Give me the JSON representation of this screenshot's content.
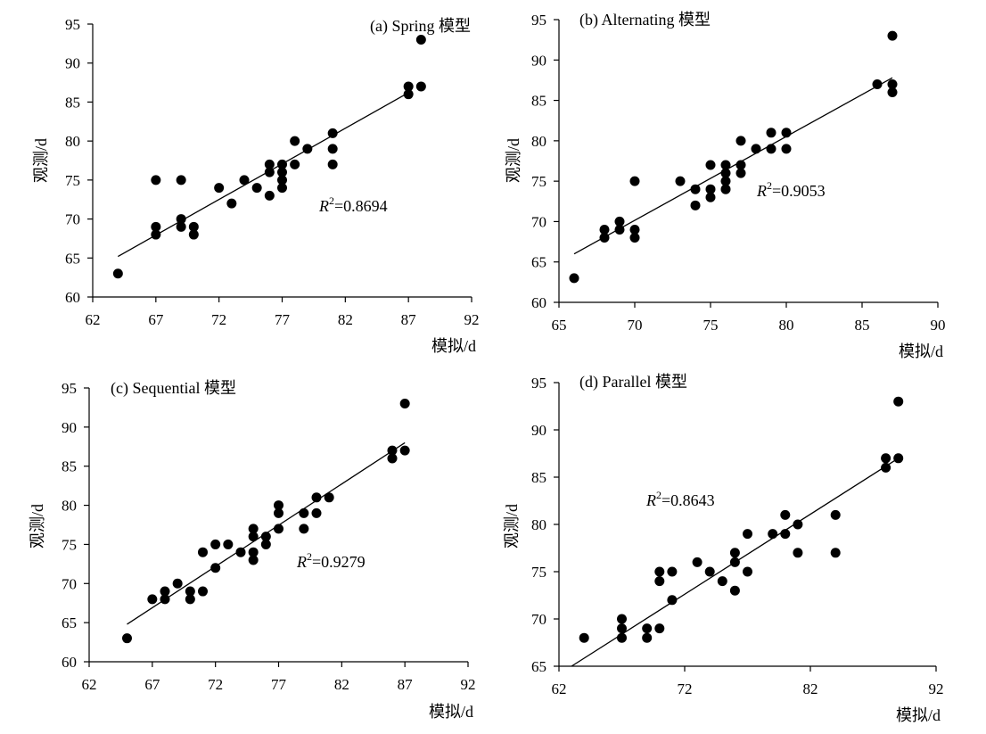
{
  "chart_data": [
    {
      "type": "scatter",
      "title": "(a) Spring 模型",
      "xlabel": "模拟/d",
      "ylabel": "观测/d",
      "xlim": [
        62,
        92
      ],
      "ylim": [
        60,
        95
      ],
      "xticks": [
        62,
        67,
        72,
        77,
        82,
        87,
        92
      ],
      "yticks": [
        60,
        65,
        70,
        75,
        80,
        85,
        90,
        95
      ],
      "r2_label": "=0.8694",
      "trendline": [
        [
          64,
          65.2
        ],
        [
          87,
          86.2
        ]
      ],
      "points": [
        [
          64,
          63
        ],
        [
          67,
          75
        ],
        [
          67,
          69
        ],
        [
          67,
          68
        ],
        [
          69,
          75
        ],
        [
          69,
          70
        ],
        [
          69,
          69
        ],
        [
          70,
          69
        ],
        [
          70,
          68
        ],
        [
          72,
          74
        ],
        [
          73,
          72
        ],
        [
          74,
          75
        ],
        [
          75,
          74
        ],
        [
          76,
          77
        ],
        [
          76,
          76
        ],
        [
          76,
          73
        ],
        [
          77,
          77
        ],
        [
          77,
          76
        ],
        [
          77,
          75
        ],
        [
          77,
          74
        ],
        [
          78,
          80
        ],
        [
          78,
          77
        ],
        [
          79,
          79
        ],
        [
          81,
          81
        ],
        [
          81,
          79
        ],
        [
          81,
          77
        ],
        [
          87,
          87
        ],
        [
          87,
          86
        ],
        [
          88,
          87
        ],
        [
          88,
          93
        ]
      ]
    },
    {
      "type": "scatter",
      "title": "(b) Alternating 模型",
      "xlabel": "模拟/d",
      "ylabel": "观测/d",
      "xlim": [
        65,
        90
      ],
      "ylim": [
        60,
        95
      ],
      "xticks": [
        65,
        70,
        75,
        80,
        85,
        90
      ],
      "yticks": [
        60,
        65,
        70,
        75,
        80,
        85,
        90,
        95
      ],
      "r2_label": "=0.9053",
      "trendline": [
        [
          66,
          66
        ],
        [
          87,
          87.8
        ]
      ],
      "points": [
        [
          66,
          63
        ],
        [
          68,
          69
        ],
        [
          68,
          68
        ],
        [
          69,
          70
        ],
        [
          69,
          69
        ],
        [
          70,
          75
        ],
        [
          70,
          69
        ],
        [
          70,
          68
        ],
        [
          73,
          75
        ],
        [
          74,
          74
        ],
        [
          74,
          72
        ],
        [
          75,
          77
        ],
        [
          75,
          74
        ],
        [
          75,
          73
        ],
        [
          76,
          77
        ],
        [
          76,
          76
        ],
        [
          76,
          75
        ],
        [
          76,
          74
        ],
        [
          77,
          80
        ],
        [
          77,
          77
        ],
        [
          77,
          76
        ],
        [
          78,
          79
        ],
        [
          79,
          81
        ],
        [
          79,
          79
        ],
        [
          80,
          81
        ],
        [
          80,
          79
        ],
        [
          86,
          87
        ],
        [
          87,
          93
        ],
        [
          87,
          87
        ],
        [
          87,
          86
        ]
      ]
    },
    {
      "type": "scatter",
      "title": "(c) Sequential 模型",
      "xlabel": "模拟/d",
      "ylabel": "观测/d",
      "xlim": [
        62,
        92
      ],
      "ylim": [
        60,
        95
      ],
      "xticks": [
        62,
        67,
        72,
        77,
        82,
        87,
        92
      ],
      "yticks": [
        60,
        65,
        70,
        75,
        80,
        85,
        90,
        95
      ],
      "r2_label": "=0.9279",
      "trendline": [
        [
          65,
          64.8
        ],
        [
          87,
          88
        ]
      ],
      "points": [
        [
          65,
          63
        ],
        [
          67,
          68
        ],
        [
          68,
          69
        ],
        [
          68,
          68
        ],
        [
          69,
          70
        ],
        [
          70,
          69
        ],
        [
          70,
          68
        ],
        [
          71,
          74
        ],
        [
          71,
          69
        ],
        [
          72,
          75
        ],
        [
          72,
          72
        ],
        [
          73,
          75
        ],
        [
          74,
          74
        ],
        [
          75,
          77
        ],
        [
          75,
          76
        ],
        [
          75,
          74
        ],
        [
          75,
          73
        ],
        [
          76,
          76
        ],
        [
          76,
          75
        ],
        [
          77,
          80
        ],
        [
          77,
          79
        ],
        [
          77,
          77
        ],
        [
          79,
          79
        ],
        [
          79,
          77
        ],
        [
          80,
          81
        ],
        [
          80,
          79
        ],
        [
          81,
          81
        ],
        [
          86,
          87
        ],
        [
          86,
          86
        ],
        [
          87,
          93
        ],
        [
          87,
          87
        ]
      ]
    },
    {
      "type": "scatter",
      "title": "(d) Parallel 模型",
      "xlabel": "模拟/d",
      "ylabel": "观测/d",
      "xlim": [
        62,
        92
      ],
      "ylim": [
        65,
        95
      ],
      "xticks": [
        62,
        72,
        82,
        92
      ],
      "yticks": [
        65,
        70,
        75,
        80,
        85,
        90,
        95
      ],
      "r2_label": "=0.8643",
      "trendline": [
        [
          63,
          65
        ],
        [
          89,
          87
        ]
      ],
      "points": [
        [
          64,
          68
        ],
        [
          67,
          70
        ],
        [
          67,
          69
        ],
        [
          67,
          68
        ],
        [
          69,
          69
        ],
        [
          69,
          68
        ],
        [
          70,
          75
        ],
        [
          70,
          74
        ],
        [
          70,
          69
        ],
        [
          71,
          75
        ],
        [
          71,
          72
        ],
        [
          73,
          76
        ],
        [
          74,
          75
        ],
        [
          75,
          74
        ],
        [
          76,
          77
        ],
        [
          76,
          76
        ],
        [
          76,
          73
        ],
        [
          77,
          79
        ],
        [
          77,
          75
        ],
        [
          79,
          79
        ],
        [
          80,
          81
        ],
        [
          80,
          79
        ],
        [
          81,
          80
        ],
        [
          81,
          77
        ],
        [
          84,
          81
        ],
        [
          84,
          77
        ],
        [
          88,
          87
        ],
        [
          88,
          86
        ],
        [
          89,
          93
        ],
        [
          89,
          87
        ]
      ]
    }
  ]
}
